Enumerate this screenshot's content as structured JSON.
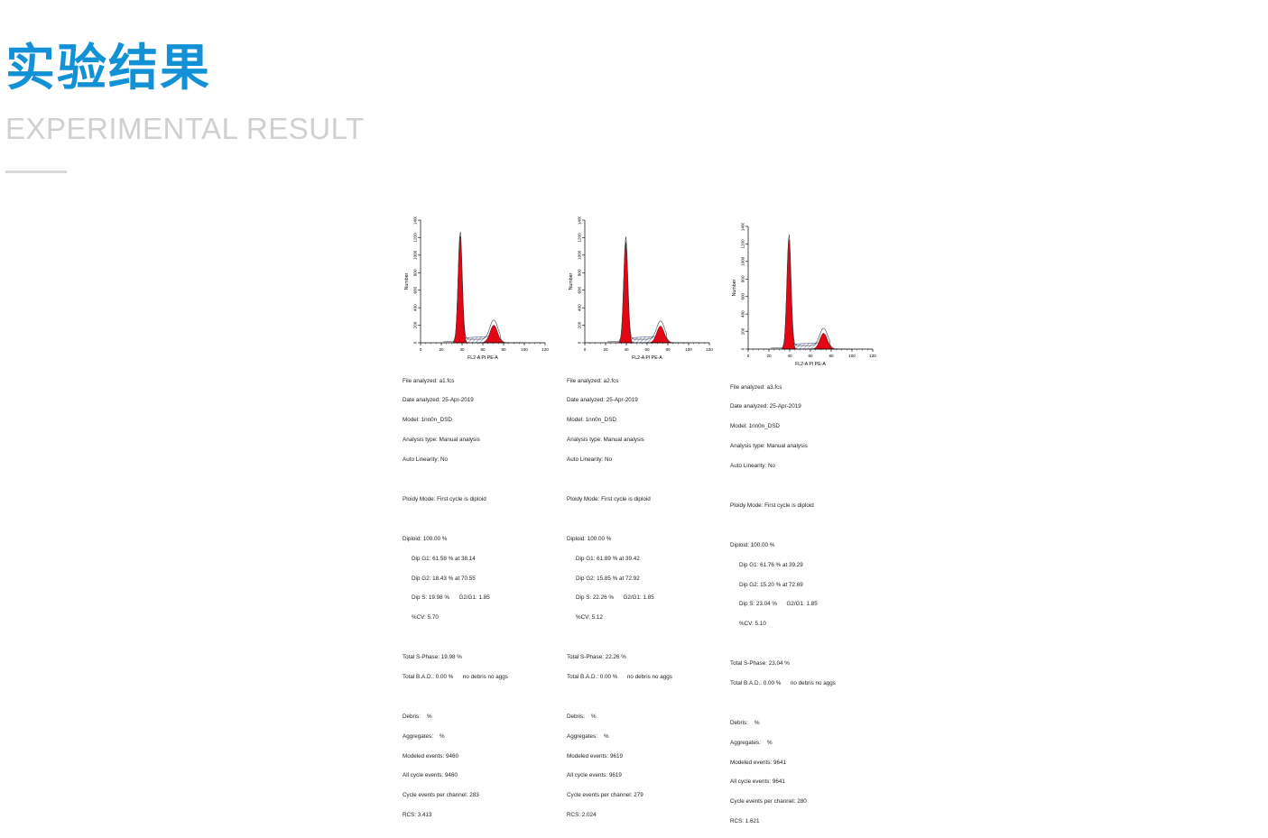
{
  "header": {
    "title_cn": "实验结果",
    "title_en": "EXPERIMENTAL RESULT"
  },
  "colors": {
    "accent": "#1391d6",
    "peak_fill": "#e30613",
    "subtitle": "#d0d0d0"
  },
  "chart_data": [
    {
      "type": "area",
      "xlabel": "FL2-A PI PE-A",
      "ylabel": "Number",
      "xlim": [
        0,
        120
      ],
      "ylim": [
        0,
        1400
      ],
      "x_ticks": [
        "0",
        "20",
        "40",
        "60",
        "80",
        "100",
        "120"
      ],
      "y_ticks": [
        "0",
        "200",
        "400",
        "600",
        "800",
        "1000",
        "1200",
        "1400"
      ],
      "peaks": [
        {
          "x": 38.14,
          "height": 1220
        },
        {
          "x": 70.55,
          "height": 200
        }
      ]
    },
    {
      "type": "area",
      "xlabel": "FL2-A PI PE-A",
      "ylabel": "Number",
      "xlim": [
        0,
        120
      ],
      "ylim": [
        0,
        1400
      ],
      "x_ticks": [
        "0",
        "20",
        "40",
        "60",
        "80",
        "100",
        "120"
      ],
      "y_ticks": [
        "0",
        "200",
        "400",
        "600",
        "800",
        "1000",
        "1200",
        "1400"
      ],
      "peaks": [
        {
          "x": 39.42,
          "height": 1150
        },
        {
          "x": 72.92,
          "height": 190
        }
      ]
    },
    {
      "type": "area",
      "xlabel": "FL2-A PI PE-A",
      "ylabel": "Number",
      "xlim": [
        0,
        120
      ],
      "ylim": [
        0,
        1400
      ],
      "x_ticks": [
        "0",
        "20",
        "40",
        "60",
        "80",
        "100",
        "120"
      ],
      "y_ticks": [
        "0",
        "200",
        "400",
        "600",
        "800",
        "1000",
        "1200",
        "1400"
      ],
      "peaks": [
        {
          "x": 39.29,
          "height": 1250
        },
        {
          "x": 72.69,
          "height": 180
        }
      ]
    }
  ],
  "reports": [
    {
      "file": "File analyzed: a1.fcs",
      "date": "Date analyzed: 25-Apr-2019",
      "model": "Model: 1nn0n_DSD",
      "analysis": "Analysis type: Manual analysis",
      "linearity": "Auto Linearity: No",
      "ploidy": "Ploidy Mode: First cycle is diploid",
      "diploid": "Diploid: 100.00 %",
      "g1": "Dip G1: 61.58 % at 38.14",
      "g2": "Dip G2: 18.43 % at 70.55",
      "s": "Dip S: 19.98 %      G2/G1: 1.85",
      "cv": "%CV: 5.70",
      "total_s": "Total S-Phase: 19.98 %",
      "total_bad": "Total B.A.D.: 0.00 %      no debris no aggs",
      "debris": "Debris:    %",
      "aggregates": "Aggregates:    %",
      "modeled": "Modeled events: 9460",
      "all_cycle": "All cycle events: 9460",
      "per_channel": "Cycle events per channel: 283",
      "rcs": "RCS: 3.413"
    },
    {
      "file": "File analyzed: a2.fcs",
      "date": "Date analyzed: 25-Apr-2019",
      "model": "Model: 1nn0n_DSD",
      "analysis": "Analysis type: Manual analysis",
      "linearity": "Auto Linearity: No",
      "ploidy": "Ploidy Mode: First cycle is diploid",
      "diploid": "Diploid: 100.00 %",
      "g1": "Dip G1: 61.89 % at 39.42",
      "g2": "Dip G2: 15.85 % at 72.92",
      "s": "Dip S: 22.26 %      G2/G1: 1.85",
      "cv": "%CV: 5.12",
      "total_s": "Total S-Phase: 22.26 %",
      "total_bad": "Total B.A.D.: 0.00 %      no debris no aggs",
      "debris": "Debris:    %",
      "aggregates": "Aggregates:    %",
      "modeled": "Modeled events: 9619",
      "all_cycle": "All cycle events: 9619",
      "per_channel": "Cycle events per channel: 279",
      "rcs": "RCS: 2.024"
    },
    {
      "file": "File analyzed: a3.fcs",
      "date": "Date analyzed: 25-Apr-2019",
      "model": "Model: 1nn0n_DSD",
      "analysis": "Analysis type: Manual analysis",
      "linearity": "Auto Linearity: No",
      "ploidy": "Ploidy Mode: First cycle is diploid",
      "diploid": "Diploid: 100.00 %",
      "g1": "Dip G1: 61.76 % at 39.29",
      "g2": "Dip G2: 15.20 % at 72.69",
      "s": "Dip S: 23.04 %      G2/G1: 1.85",
      "cv": "%CV: 5.10",
      "total_s": "Total S-Phase: 23.04 %",
      "total_bad": "Total B.A.D.: 0.00 %      no debris no aggs",
      "debris": "Debris:    %",
      "aggregates": "Aggregates:    %",
      "modeled": "Modeled events: 9641",
      "all_cycle": "All cycle events: 9641",
      "per_channel": "Cycle events per channel: 280",
      "rcs": "RCS: 1.621"
    }
  ]
}
